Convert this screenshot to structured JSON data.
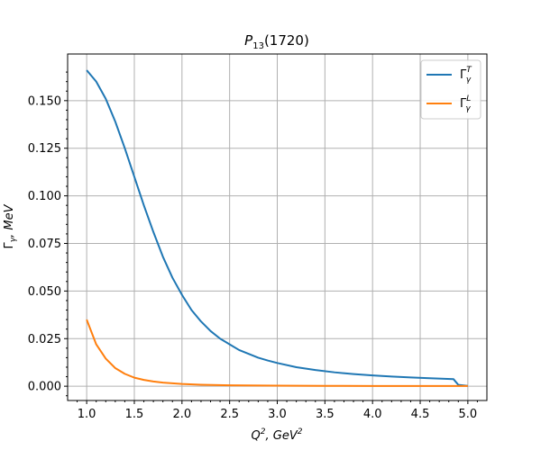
{
  "chart_data": {
    "type": "line",
    "title_parts": {
      "main": "P",
      "sub": "13",
      "tail": "(1720)"
    },
    "xlabel_parts": {
      "q": "Q",
      "qsup": "2",
      "mid": ", GeV",
      "gsup": "2"
    },
    "ylabel_parts": {
      "gamma": "Γ",
      "sub": "γ",
      "tail": ", MeV"
    },
    "xlim": [
      0.8,
      5.2
    ],
    "ylim": [
      -0.0075,
      0.1745
    ],
    "x_ticks": [
      1.0,
      1.5,
      2.0,
      2.5,
      3.0,
      3.5,
      4.0,
      4.5,
      5.0
    ],
    "x_tick_labels": [
      "1.0",
      "1.5",
      "2.0",
      "2.5",
      "3.0",
      "3.5",
      "4.0",
      "4.5",
      "5.0"
    ],
    "y_ticks": [
      0.0,
      0.025,
      0.05,
      0.075,
      0.1,
      0.125,
      0.15
    ],
    "y_tick_labels": [
      "0.000",
      "0.025",
      "0.050",
      "0.075",
      "0.100",
      "0.125",
      "0.150"
    ],
    "grid": true,
    "legend_position": "top-right",
    "series": [
      {
        "name_base": "Γ",
        "name_sup": "T",
        "name_sub": "γ",
        "color": "#1f77b4",
        "x": [
          1.0,
          1.1,
          1.2,
          1.3,
          1.4,
          1.5,
          1.6,
          1.7,
          1.8,
          1.9,
          2.0,
          2.1,
          2.2,
          2.3,
          2.4,
          2.5,
          2.6,
          2.7,
          2.8,
          2.9,
          3.0,
          3.2,
          3.4,
          3.6,
          3.8,
          4.0,
          4.2,
          4.4,
          4.6,
          4.85,
          4.9,
          5.0
        ],
        "y": [
          0.166,
          0.16,
          0.151,
          0.139,
          0.125,
          0.11,
          0.095,
          0.081,
          0.068,
          0.057,
          0.048,
          0.04,
          0.034,
          0.029,
          0.025,
          0.022,
          0.019,
          0.017,
          0.015,
          0.0135,
          0.0122,
          0.01,
          0.0085,
          0.0073,
          0.0064,
          0.0057,
          0.0051,
          0.0046,
          0.0042,
          0.0037,
          0.0007,
          0.0002
        ]
      },
      {
        "name_base": "Γ",
        "name_sup": "L",
        "name_sub": "γ",
        "color": "#ff7f0e",
        "x": [
          1.0,
          1.1,
          1.2,
          1.3,
          1.4,
          1.5,
          1.6,
          1.7,
          1.8,
          2.0,
          2.2,
          2.5,
          3.0,
          3.5,
          4.0,
          4.5,
          5.0
        ],
        "y": [
          0.035,
          0.022,
          0.0145,
          0.0095,
          0.0065,
          0.0045,
          0.0033,
          0.0025,
          0.0019,
          0.0012,
          0.0008,
          0.0005,
          0.0003,
          0.0002,
          0.00015,
          0.0001,
          0.0001
        ]
      }
    ]
  }
}
